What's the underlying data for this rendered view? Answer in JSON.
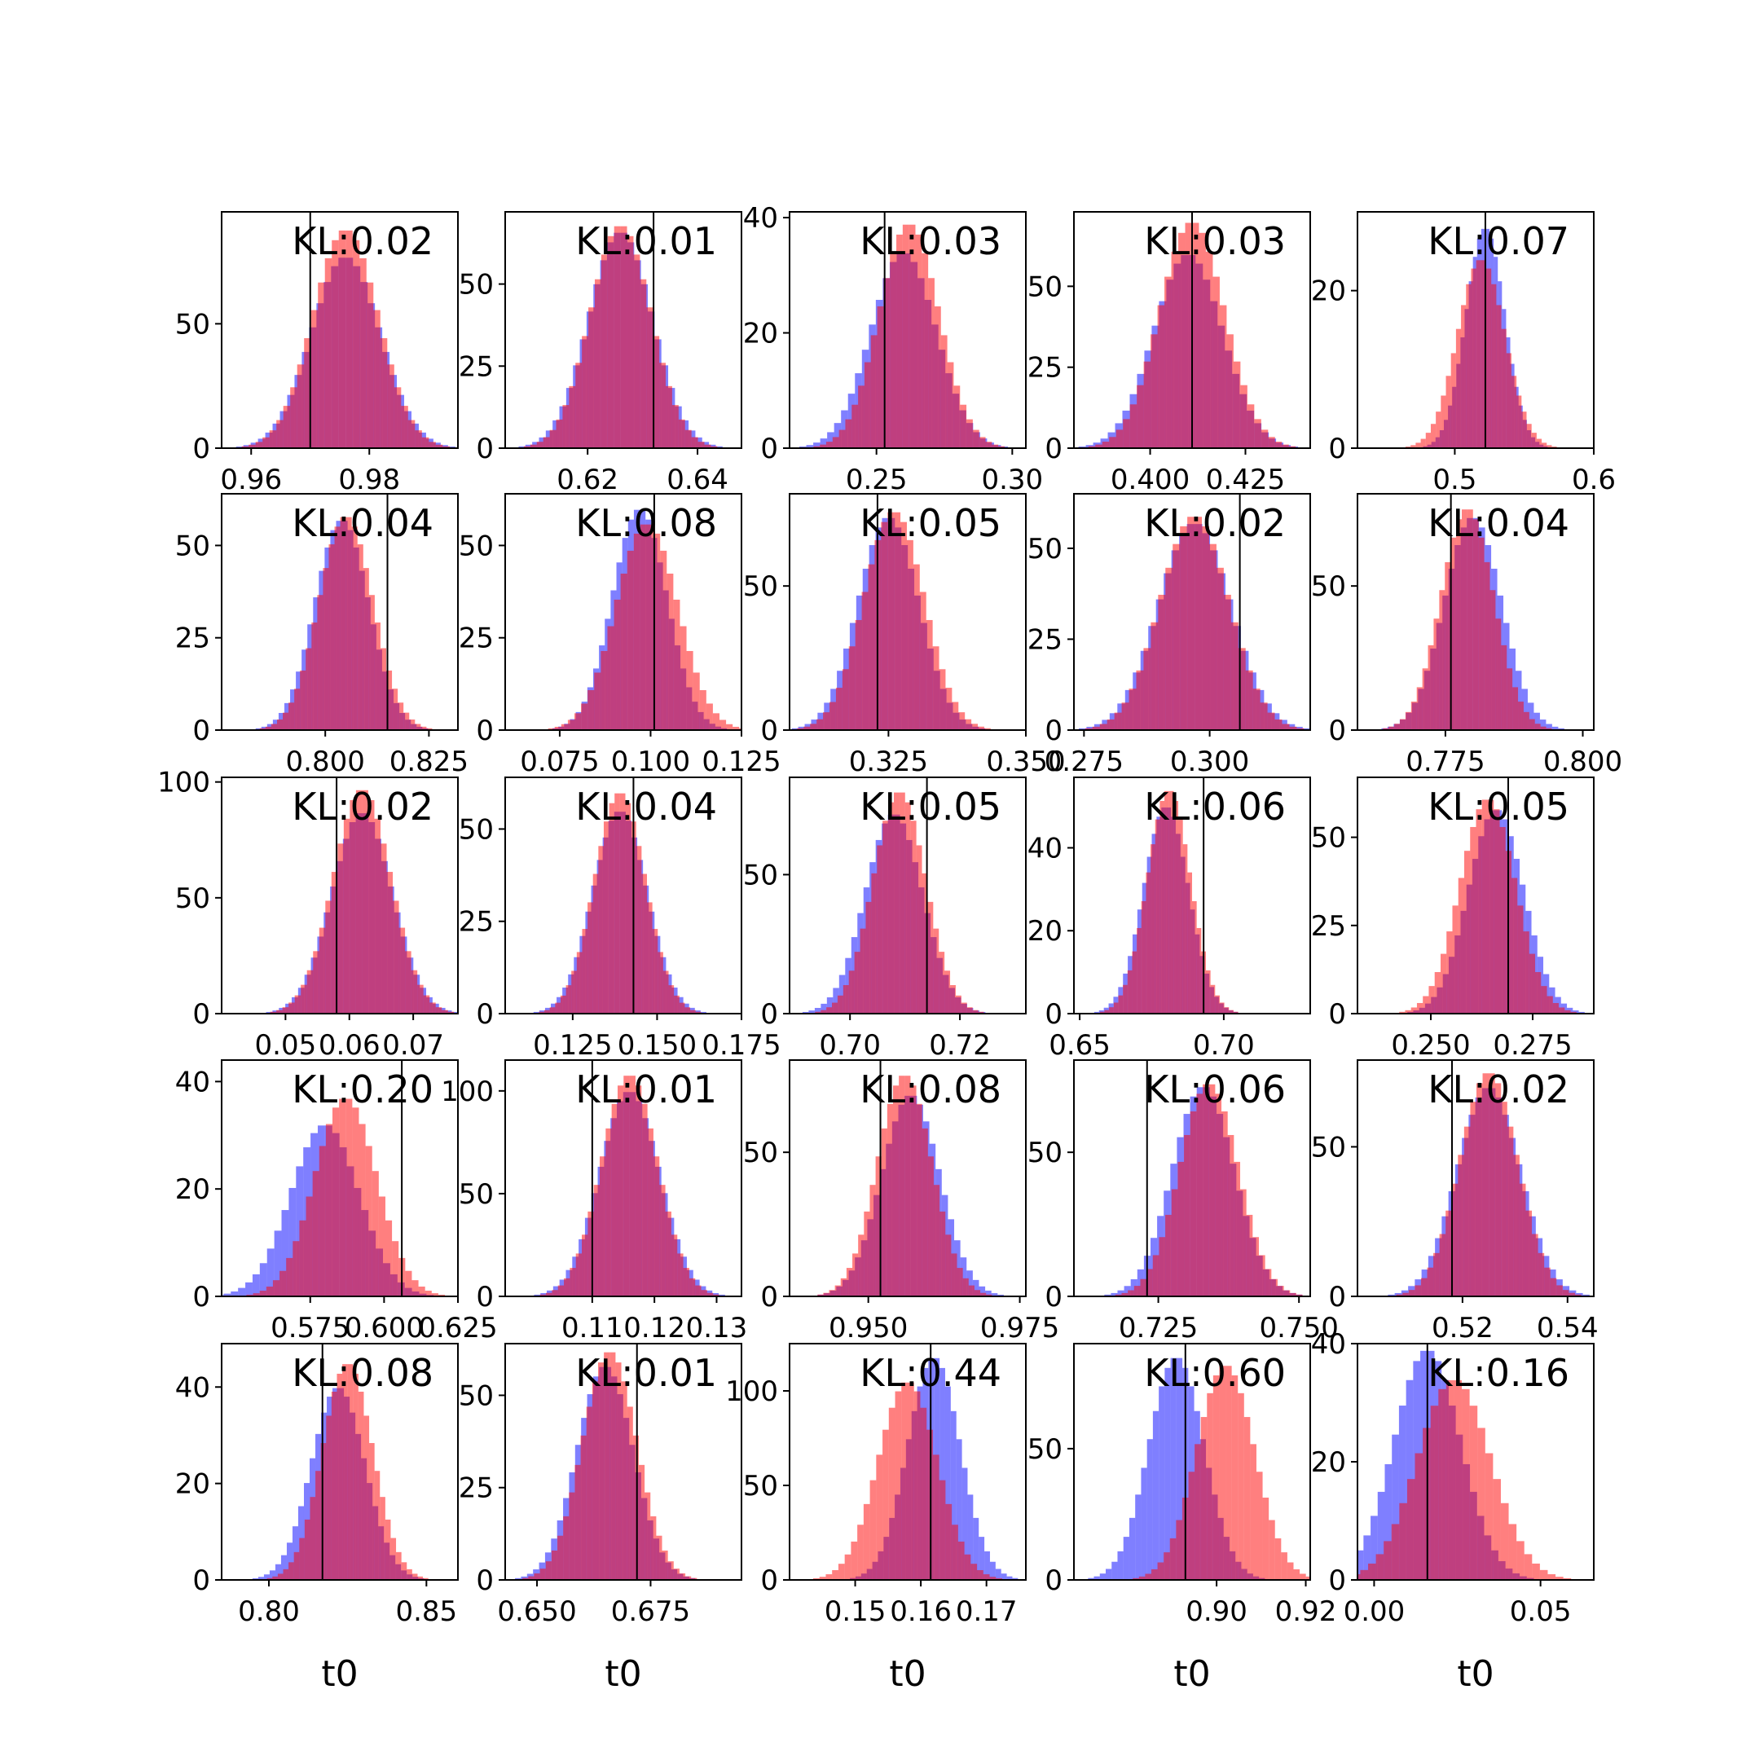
{
  "colors": {
    "prior": "#ff0000",
    "posterior": "#0000ff",
    "overlap": "#7f3fbf",
    "truth_line": "#000000"
  },
  "chart_data": [
    {
      "type": "histogram",
      "title": "KL:0.02",
      "xlim": [
        0.955,
        0.995
      ],
      "ylim": [
        0,
        95
      ],
      "xticks": [
        0.96,
        0.98
      ],
      "xtick_labels": [
        "0.96",
        "0.98"
      ],
      "yticks": [
        0,
        50
      ],
      "ytick_labels": [
        "0",
        "50"
      ],
      "truth": 0.97,
      "prior": {
        "mean": 0.976,
        "sd": 0.0055,
        "peak": 88
      },
      "posterior": {
        "mean": 0.976,
        "sd": 0.0058,
        "peak": 77
      },
      "xlabel": ""
    },
    {
      "type": "histogram",
      "title": "KL:0.01",
      "xlim": [
        0.605,
        0.648
      ],
      "ylim": [
        0,
        72
      ],
      "xticks": [
        0.62,
        0.64
      ],
      "xtick_labels": [
        "0.62",
        "0.64"
      ],
      "yticks": [
        0,
        25,
        50
      ],
      "ytick_labels": [
        "0",
        "25",
        "50"
      ],
      "truth": 0.632,
      "prior": {
        "mean": 0.626,
        "sd": 0.0055,
        "peak": 68
      },
      "posterior": {
        "mean": 0.626,
        "sd": 0.0058,
        "peak": 66
      },
      "xlabel": ""
    },
    {
      "type": "histogram",
      "title": "KL:0.03",
      "xlim": [
        0.218,
        0.305
      ],
      "ylim": [
        0,
        41
      ],
      "xticks": [
        0.25,
        0.3
      ],
      "xtick_labels": [
        "0.25",
        "0.30"
      ],
      "yticks": [
        0,
        20,
        40
      ],
      "ytick_labels": [
        "0",
        "20",
        "40"
      ],
      "truth": 0.253,
      "prior": {
        "mean": 0.262,
        "sd": 0.011,
        "peak": 39
      },
      "posterior": {
        "mean": 0.26,
        "sd": 0.012,
        "peak": 34
      },
      "xlabel": ""
    },
    {
      "type": "histogram",
      "title": "KL:0.03",
      "xlim": [
        0.38,
        0.442
      ],
      "ylim": [
        0,
        73
      ],
      "xticks": [
        0.4,
        0.425
      ],
      "xtick_labels": [
        "0.400",
        "0.425"
      ],
      "yticks": [
        0,
        25,
        50
      ],
      "ytick_labels": [
        "0",
        "25",
        "50"
      ],
      "truth": 0.411,
      "prior": {
        "mean": 0.411,
        "sd": 0.0085,
        "peak": 70
      },
      "posterior": {
        "mean": 0.41,
        "sd": 0.009,
        "peak": 60
      },
      "xlabel": ""
    },
    {
      "type": "histogram",
      "title": "KL:0.07",
      "xlim": [
        0.43,
        0.6
      ],
      "ylim": [
        0,
        30
      ],
      "xticks": [
        0.5,
        0.6
      ],
      "xtick_labels": [
        "0.5",
        "0.6"
      ],
      "yticks": [
        0,
        20
      ],
      "ytick_labels": [
        "0",
        "20"
      ],
      "truth": 0.522,
      "prior": {
        "mean": 0.519,
        "sd": 0.017,
        "peak": 24
      },
      "posterior": {
        "mean": 0.522,
        "sd": 0.014,
        "peak": 28
      },
      "xlabel": ""
    },
    {
      "type": "histogram",
      "title": "KL:0.04",
      "xlim": [
        0.775,
        0.832
      ],
      "ylim": [
        0,
        64
      ],
      "xticks": [
        0.8,
        0.825
      ],
      "xtick_labels": [
        "0.800",
        "0.825"
      ],
      "yticks": [
        0,
        25,
        50
      ],
      "ytick_labels": [
        "0",
        "25",
        "50"
      ],
      "truth": 0.815,
      "prior": {
        "mean": 0.805,
        "sd": 0.0065,
        "peak": 58
      },
      "posterior": {
        "mean": 0.804,
        "sd": 0.0065,
        "peak": 57
      },
      "xlabel": ""
    },
    {
      "type": "histogram",
      "title": "KL:0.08",
      "xlim": [
        0.06,
        0.125
      ],
      "ylim": [
        0,
        64
      ],
      "xticks": [
        0.075,
        0.1,
        0.125
      ],
      "xtick_labels": [
        "0.075",
        "0.100",
        "0.125"
      ],
      "yticks": [
        0,
        25,
        50
      ],
      "ytick_labels": [
        "0",
        "25",
        "50"
      ],
      "truth": 0.101,
      "prior": {
        "mean": 0.099,
        "sd": 0.0085,
        "peak": 56
      },
      "posterior": {
        "mean": 0.097,
        "sd": 0.0075,
        "peak": 60
      },
      "xlabel": ""
    },
    {
      "type": "histogram",
      "title": "KL:0.05",
      "xlim": [
        0.307,
        0.35
      ],
      "ylim": [
        0,
        82
      ],
      "xticks": [
        0.325,
        0.35
      ],
      "xtick_labels": [
        "0.325",
        "0.350"
      ],
      "yticks": [
        0,
        50
      ],
      "ytick_labels": [
        "0",
        "50"
      ],
      "truth": 0.323,
      "prior": {
        "mean": 0.326,
        "sd": 0.0055,
        "peak": 76
      },
      "posterior": {
        "mean": 0.325,
        "sd": 0.0055,
        "peak": 74
      },
      "xlabel": ""
    },
    {
      "type": "histogram",
      "title": "KL:0.02",
      "xlim": [
        0.273,
        0.32
      ],
      "ylim": [
        0,
        65
      ],
      "xticks": [
        0.275,
        0.3
      ],
      "xtick_labels": [
        "0.275",
        "0.300"
      ],
      "yticks": [
        0,
        25,
        50
      ],
      "ytick_labels": [
        "0",
        "25",
        "50"
      ],
      "truth": 0.306,
      "prior": {
        "mean": 0.297,
        "sd": 0.0068,
        "peak": 59
      },
      "posterior": {
        "mean": 0.297,
        "sd": 0.0072,
        "peak": 57
      },
      "xlabel": ""
    },
    {
      "type": "histogram",
      "title": "KL:0.04",
      "xlim": [
        0.759,
        0.802
      ],
      "ylim": [
        0,
        82
      ],
      "xticks": [
        0.775,
        0.8
      ],
      "xtick_labels": [
        "0.775",
        "0.800"
      ],
      "yticks": [
        0,
        50
      ],
      "ytick_labels": [
        "0",
        "50"
      ],
      "truth": 0.776,
      "prior": {
        "mean": 0.779,
        "sd": 0.0048,
        "peak": 77
      },
      "posterior": {
        "mean": 0.78,
        "sd": 0.0052,
        "peak": 74
      },
      "xlabel": ""
    },
    {
      "type": "histogram",
      "title": "KL:0.02",
      "xlim": [
        0.04,
        0.077
      ],
      "ylim": [
        0,
        102
      ],
      "xticks": [
        0.05,
        0.06,
        0.07
      ],
      "xtick_labels": [
        "0.05",
        "0.06",
        "0.07"
      ],
      "yticks": [
        0,
        50,
        100
      ],
      "ytick_labels": [
        "0",
        "50",
        "100"
      ],
      "truth": 0.058,
      "prior": {
        "mean": 0.062,
        "sd": 0.0045,
        "peak": 97
      },
      "posterior": {
        "mean": 0.062,
        "sd": 0.0047,
        "peak": 87
      },
      "xlabel": ""
    },
    {
      "type": "histogram",
      "title": "KL:0.04",
      "xlim": [
        0.105,
        0.175
      ],
      "ylim": [
        0,
        64
      ],
      "xticks": [
        0.125,
        0.15,
        0.175
      ],
      "xtick_labels": [
        "0.125",
        "0.150",
        "0.175"
      ],
      "yticks": [
        0,
        25,
        50
      ],
      "ytick_labels": [
        "0",
        "25",
        "50"
      ],
      "truth": 0.143,
      "prior": {
        "mean": 0.139,
        "sd": 0.0075,
        "peak": 60
      },
      "posterior": {
        "mean": 0.139,
        "sd": 0.008,
        "peak": 55
      },
      "xlabel": ""
    },
    {
      "type": "histogram",
      "title": "KL:0.05",
      "xlim": [
        0.689,
        0.732
      ],
      "ylim": [
        0,
        85
      ],
      "xticks": [
        0.7,
        0.72
      ],
      "xtick_labels": [
        "0.70",
        "0.72"
      ],
      "yticks": [
        0,
        50
      ],
      "ytick_labels": [
        "0",
        "50"
      ],
      "truth": 0.714,
      "prior": {
        "mean": 0.709,
        "sd": 0.0048,
        "peak": 80
      },
      "posterior": {
        "mean": 0.708,
        "sd": 0.0052,
        "peak": 72
      },
      "xlabel": ""
    },
    {
      "type": "histogram",
      "title": "KL:0.06",
      "xlim": [
        0.648,
        0.73
      ],
      "ylim": [
        0,
        57
      ],
      "xticks": [
        0.65,
        0.7
      ],
      "xtick_labels": [
        "0.65",
        "0.70"
      ],
      "yticks": [
        0,
        20,
        40
      ],
      "ytick_labels": [
        "0",
        "20",
        "40"
      ],
      "truth": 0.693,
      "prior": {
        "mean": 0.681,
        "sd": 0.0075,
        "peak": 54
      },
      "posterior": {
        "mean": 0.68,
        "sd": 0.0078,
        "peak": 50
      },
      "xlabel": ""
    },
    {
      "type": "histogram",
      "title": "KL:0.05",
      "xlim": [
        0.232,
        0.29
      ],
      "ylim": [
        0,
        67
      ],
      "xticks": [
        0.25,
        0.275
      ],
      "xtick_labels": [
        "0.250",
        "0.275"
      ],
      "yticks": [
        0,
        25,
        50
      ],
      "ytick_labels": [
        "0",
        "25",
        "50"
      ],
      "truth": 0.269,
      "prior": {
        "mean": 0.264,
        "sd": 0.0068,
        "peak": 61
      },
      "posterior": {
        "mean": 0.266,
        "sd": 0.0068,
        "peak": 58
      },
      "xlabel": ""
    },
    {
      "type": "histogram",
      "title": "KL:0.20",
      "xlim": [
        0.545,
        0.625
      ],
      "ylim": [
        0,
        44
      ],
      "xticks": [
        0.575,
        0.6,
        0.625
      ],
      "xtick_labels": [
        "0.575",
        "0.600",
        "0.625"
      ],
      "yticks": [
        0,
        20,
        40
      ],
      "ytick_labels": [
        "0",
        "20",
        "40"
      ],
      "truth": 0.606,
      "prior": {
        "mean": 0.587,
        "sd": 0.0105,
        "peak": 37
      },
      "posterior": {
        "mean": 0.58,
        "sd": 0.0115,
        "peak": 32
      },
      "xlabel": ""
    },
    {
      "type": "histogram",
      "title": "KL:0.01",
      "xlim": [
        0.096,
        0.134
      ],
      "ylim": [
        0,
        115
      ],
      "xticks": [
        0.11,
        0.12,
        0.13
      ],
      "xtick_labels": [
        "0.11",
        "0.12",
        "0.13"
      ],
      "yticks": [
        0,
        50,
        100
      ],
      "ytick_labels": [
        "0",
        "50",
        "100"
      ],
      "truth": 0.11,
      "prior": {
        "mean": 0.116,
        "sd": 0.0045,
        "peak": 108
      },
      "posterior": {
        "mean": 0.116,
        "sd": 0.0048,
        "peak": 100
      },
      "xlabel": ""
    },
    {
      "type": "histogram",
      "title": "KL:0.08",
      "xlim": [
        0.937,
        0.976
      ],
      "ylim": [
        0,
        82
      ],
      "xticks": [
        0.95,
        0.975
      ],
      "xtick_labels": [
        "0.950",
        "0.975"
      ],
      "yticks": [
        0,
        50
      ],
      "ytick_labels": [
        "0",
        "50"
      ],
      "truth": 0.952,
      "prior": {
        "mean": 0.956,
        "sd": 0.0045,
        "peak": 77
      },
      "posterior": {
        "mean": 0.957,
        "sd": 0.0048,
        "peak": 70
      },
      "xlabel": ""
    },
    {
      "type": "histogram",
      "title": "KL:0.06",
      "xlim": [
        0.71,
        0.752
      ],
      "ylim": [
        0,
        82
      ],
      "xticks": [
        0.725,
        0.75
      ],
      "xtick_labels": [
        "0.725",
        "0.750"
      ],
      "yticks": [
        0,
        50
      ],
      "ytick_labels": [
        "0",
        "50"
      ],
      "truth": 0.723,
      "prior": {
        "mean": 0.734,
        "sd": 0.0052,
        "peak": 74
      },
      "posterior": {
        "mean": 0.733,
        "sd": 0.0055,
        "peak": 73
      },
      "xlabel": ""
    },
    {
      "type": "histogram",
      "title": "KL:0.02",
      "xlim": [
        0.5,
        0.545
      ],
      "ylim": [
        0,
        79
      ],
      "xticks": [
        0.52,
        0.54
      ],
      "xtick_labels": [
        "0.52",
        "0.54"
      ],
      "yticks": [
        0,
        50
      ],
      "ytick_labels": [
        "0",
        "50"
      ],
      "truth": 0.518,
      "prior": {
        "mean": 0.525,
        "sd": 0.0055,
        "peak": 75
      },
      "posterior": {
        "mean": 0.525,
        "sd": 0.006,
        "peak": 70
      },
      "xlabel": ""
    },
    {
      "type": "histogram",
      "title": "KL:0.08",
      "xlim": [
        0.785,
        0.86
      ],
      "ylim": [
        0,
        49
      ],
      "xticks": [
        0.8,
        0.85
      ],
      "xtick_labels": [
        "0.80",
        "0.85"
      ],
      "yticks": [
        0,
        20,
        40
      ],
      "ytick_labels": [
        "0",
        "20",
        "40"
      ],
      "truth": 0.817,
      "prior": {
        "mean": 0.825,
        "sd": 0.008,
        "peak": 45
      },
      "posterior": {
        "mean": 0.822,
        "sd": 0.0085,
        "peak": 40
      },
      "xlabel": "t0"
    },
    {
      "type": "histogram",
      "title": "KL:0.01",
      "xlim": [
        0.643,
        0.695
      ],
      "ylim": [
        0,
        64
      ],
      "xticks": [
        0.65,
        0.675
      ],
      "xtick_labels": [
        "0.650",
        "0.675"
      ],
      "yticks": [
        0,
        25,
        50
      ],
      "ytick_labels": [
        "0",
        "25",
        "50"
      ],
      "truth": 0.672,
      "prior": {
        "mean": 0.666,
        "sd": 0.006,
        "peak": 62
      },
      "posterior": {
        "mean": 0.665,
        "sd": 0.0062,
        "peak": 58
      },
      "xlabel": "t0"
    },
    {
      "type": "histogram",
      "title": "KL:0.44",
      "xlim": [
        0.14,
        0.176
      ],
      "ylim": [
        0,
        125
      ],
      "xticks": [
        0.15,
        0.16,
        0.17
      ],
      "xtick_labels": [
        "0.15",
        "0.16",
        "0.17"
      ],
      "yticks": [
        0,
        50,
        100
      ],
      "ytick_labels": [
        "0",
        "50",
        "100"
      ],
      "truth": 0.1615,
      "prior": {
        "mean": 0.158,
        "sd": 0.0045,
        "peak": 105
      },
      "posterior": {
        "mean": 0.162,
        "sd": 0.004,
        "peak": 118
      },
      "xlabel": "t0"
    },
    {
      "type": "histogram",
      "title": "KL:0.60",
      "xlim": [
        0.868,
        0.921
      ],
      "ylim": [
        0,
        90
      ],
      "xticks": [
        0.9,
        0.92
      ],
      "xtick_labels": [
        "0.90",
        "0.92"
      ],
      "yticks": [
        0,
        50
      ],
      "ytick_labels": [
        "0",
        "50"
      ],
      "truth": 0.893,
      "prior": {
        "mean": 0.902,
        "sd": 0.0065,
        "peak": 82
      },
      "posterior": {
        "mean": 0.891,
        "sd": 0.0062,
        "peak": 85
      },
      "xlabel": "t0"
    },
    {
      "type": "histogram",
      "title": "KL:0.16",
      "xlim": [
        -0.005,
        0.066
      ],
      "ylim": [
        0,
        40
      ],
      "xticks": [
        0.0,
        0.05
      ],
      "xtick_labels": [
        "0.00",
        "0.05"
      ],
      "yticks": [
        0,
        20,
        40
      ],
      "ytick_labels": [
        "0",
        "20",
        "40"
      ],
      "truth": 0.016,
      "prior": {
        "mean": 0.024,
        "sd": 0.011,
        "peak": 34
      },
      "posterior": {
        "mean": 0.016,
        "sd": 0.01,
        "peak": 39
      },
      "xlabel": "t0"
    }
  ]
}
